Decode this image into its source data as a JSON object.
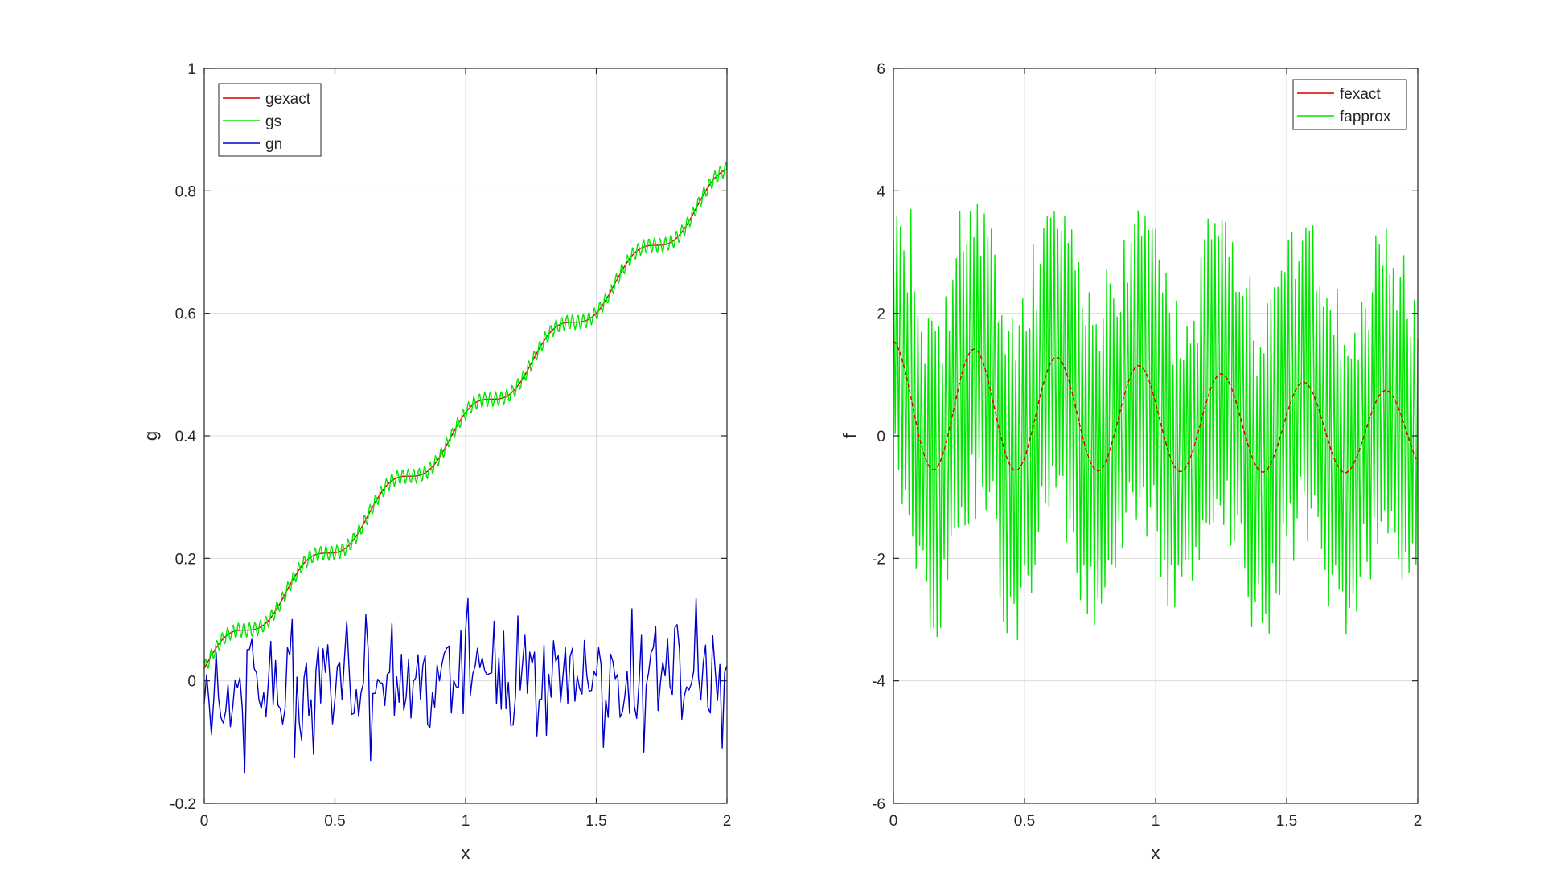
{
  "chart_data": [
    {
      "type": "line",
      "id": "left",
      "xlabel": "x",
      "ylabel": "g",
      "xlim": [
        0,
        2
      ],
      "ylim": [
        -0.2,
        1
      ],
      "xticks": [
        0,
        0.5,
        1,
        1.5,
        2
      ],
      "xtick_labels": [
        "0",
        "0.5",
        "1",
        "1.5",
        "2"
      ],
      "yticks": [
        -0.2,
        0,
        0.2,
        0.4,
        0.6,
        0.8,
        1
      ],
      "ytick_labels": [
        "-0.2",
        "0",
        "0.2",
        "0.4",
        "0.6",
        "0.8",
        "1"
      ],
      "grid": true,
      "legend_position": "top-left",
      "series": [
        {
          "name": "gexact",
          "color": "#d40000",
          "model": "gexact",
          "noise_level": 0
        },
        {
          "name": "gs",
          "color": "#00e600",
          "model": "gs",
          "noise_level": 0
        },
        {
          "name": "gn",
          "color": "#0000cc",
          "model": "gn",
          "noise_level": 0.05
        }
      ]
    },
    {
      "type": "line",
      "id": "right",
      "xlabel": "x",
      "ylabel": "f",
      "xlim": [
        0,
        2
      ],
      "ylim": [
        -6,
        6
      ],
      "xticks": [
        0,
        0.5,
        1,
        1.5,
        2
      ],
      "xtick_labels": [
        "0",
        "0.5",
        "1",
        "1.5",
        "2"
      ],
      "yticks": [
        -6,
        -4,
        -2,
        0,
        2,
        4,
        6
      ],
      "ytick_labels": [
        "-6",
        "-4",
        "-2",
        "0",
        "2",
        "4",
        "6"
      ],
      "grid": true,
      "legend_position": "top-right",
      "series": [
        {
          "name": "fexact",
          "color": "#d40000",
          "model": "fexact",
          "noise_level": 0
        },
        {
          "name": "fapprox",
          "color": "#00e600",
          "model": "fapprox",
          "noise_level": 2.8
        }
      ]
    }
  ]
}
